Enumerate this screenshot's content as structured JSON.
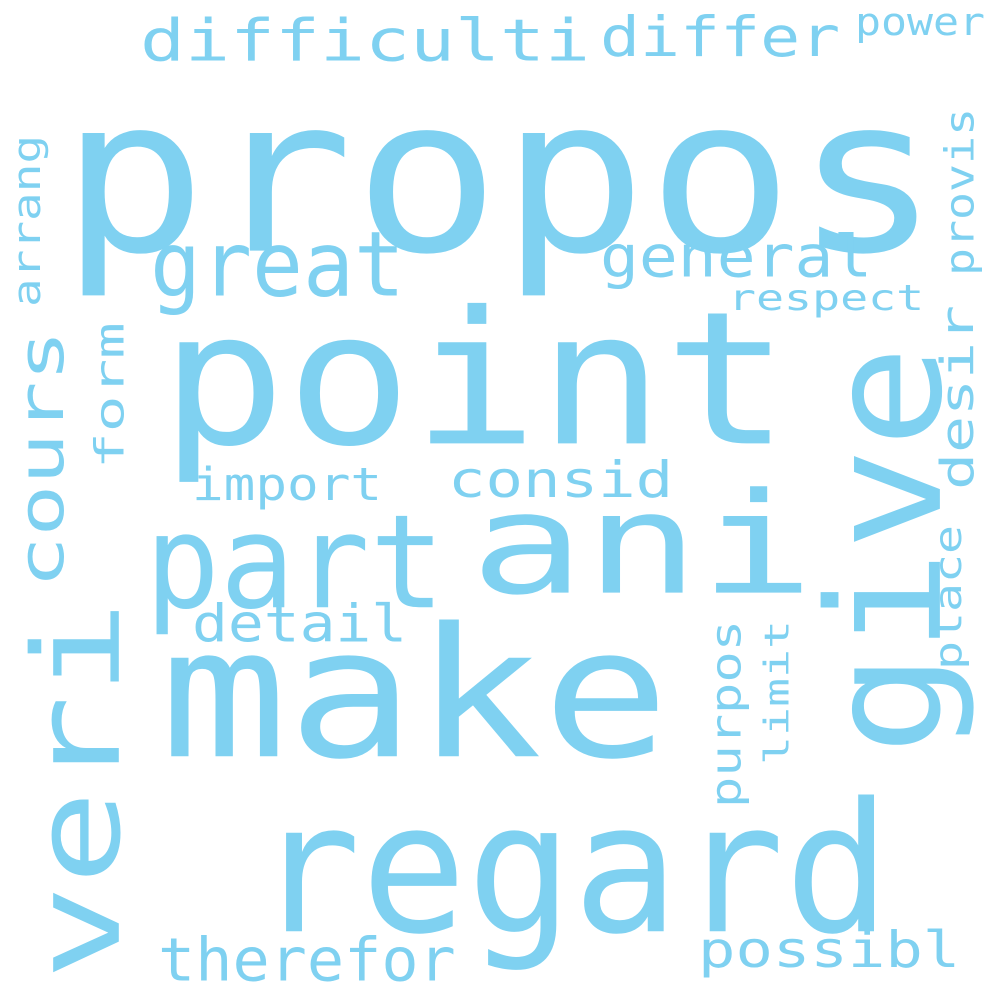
{
  "background": "#ffffff",
  "word_color": "#7fd1f1",
  "words": [
    {
      "key": "propos",
      "text": "propos",
      "orientation": "horizontal"
    },
    {
      "key": "point",
      "text": "point",
      "orientation": "horizontal"
    },
    {
      "key": "make",
      "text": "make",
      "orientation": "horizontal"
    },
    {
      "key": "regard",
      "text": "regard",
      "orientation": "horizontal"
    },
    {
      "key": "ani",
      "text": "ani",
      "orientation": "horizontal"
    },
    {
      "key": "give",
      "text": "give",
      "orientation": "vertical"
    },
    {
      "key": "veri",
      "text": "veri",
      "orientation": "vertical"
    },
    {
      "key": "part",
      "text": "part",
      "orientation": "horizontal"
    },
    {
      "key": "great",
      "text": "great",
      "orientation": "horizontal"
    },
    {
      "key": "difficulti",
      "text": "difficulti",
      "orientation": "horizontal"
    },
    {
      "key": "differ",
      "text": "differ",
      "orientation": "horizontal"
    },
    {
      "key": "cours",
      "text": "cours",
      "orientation": "vertical"
    },
    {
      "key": "general",
      "text": "general",
      "orientation": "horizontal"
    },
    {
      "key": "consid",
      "text": "consid",
      "orientation": "horizontal"
    },
    {
      "key": "therefor",
      "text": "therefor",
      "orientation": "horizontal"
    },
    {
      "key": "possibl",
      "text": "possibl",
      "orientation": "horizontal"
    },
    {
      "key": "detail",
      "text": "detail",
      "orientation": "horizontal"
    },
    {
      "key": "import",
      "text": "import",
      "orientation": "horizontal"
    },
    {
      "key": "form",
      "text": "form",
      "orientation": "vertical"
    },
    {
      "key": "desir",
      "text": "desir",
      "orientation": "vertical"
    },
    {
      "key": "purpos",
      "text": "purpos",
      "orientation": "vertical"
    },
    {
      "key": "respect",
      "text": "respect",
      "orientation": "horizontal"
    },
    {
      "key": "power",
      "text": "power",
      "orientation": "horizontal"
    },
    {
      "key": "arrang",
      "text": "arrang",
      "orientation": "vertical"
    },
    {
      "key": "provis",
      "text": "provis",
      "orientation": "vertical"
    },
    {
      "key": "place",
      "text": "place",
      "orientation": "vertical"
    },
    {
      "key": "limit",
      "text": "limit",
      "orientation": "vertical"
    }
  ]
}
